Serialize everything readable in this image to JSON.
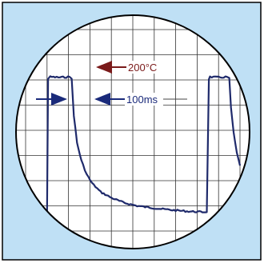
{
  "annotations": {
    "temperature": {
      "text": "200°C",
      "color": "#7a1a1a"
    },
    "pulse_width": {
      "text": "100ms",
      "color": "#1a2a7a"
    }
  },
  "colors": {
    "outer_background": "#bfe0f5",
    "screen": "#ffffff",
    "grid": "#333333",
    "trace": "#1f2a6b",
    "border": "#000000"
  },
  "chart_data": {
    "type": "line",
    "grid": true,
    "grid_divisions": {
      "x": 10,
      "y": 8
    },
    "ylim": [
      0,
      8
    ],
    "xlim": [
      0,
      10
    ],
    "series": [
      {
        "points": [
          [
            0.0,
            0.7
          ],
          [
            0.4,
            0.72
          ],
          [
            0.65,
            0.66
          ],
          [
            0.9,
            0.7
          ],
          [
            1.0,
            0.7
          ],
          [
            1.05,
            6.05
          ],
          [
            1.15,
            6.12
          ],
          [
            1.6,
            6.1
          ],
          [
            2.05,
            6.12
          ],
          [
            2.15,
            6.05
          ],
          [
            2.25,
            4.6
          ],
          [
            2.4,
            3.5
          ],
          [
            2.6,
            2.8
          ],
          [
            2.85,
            2.25
          ],
          [
            3.1,
            1.9
          ],
          [
            3.5,
            1.55
          ],
          [
            4.0,
            1.32
          ],
          [
            4.6,
            1.12
          ],
          [
            5.2,
            1.0
          ],
          [
            5.8,
            0.93
          ],
          [
            6.4,
            0.87
          ],
          [
            7.0,
            0.82
          ],
          [
            7.6,
            0.78
          ],
          [
            8.1,
            0.76
          ],
          [
            8.45,
            0.75
          ],
          [
            8.55,
            6.05
          ],
          [
            8.6,
            6.12
          ],
          [
            9.0,
            6.1
          ],
          [
            9.4,
            6.12
          ],
          [
            9.5,
            6.05
          ],
          [
            9.58,
            4.9
          ],
          [
            9.7,
            3.9
          ],
          [
            9.85,
            3.1
          ],
          [
            10.0,
            2.6
          ]
        ]
      }
    ]
  }
}
